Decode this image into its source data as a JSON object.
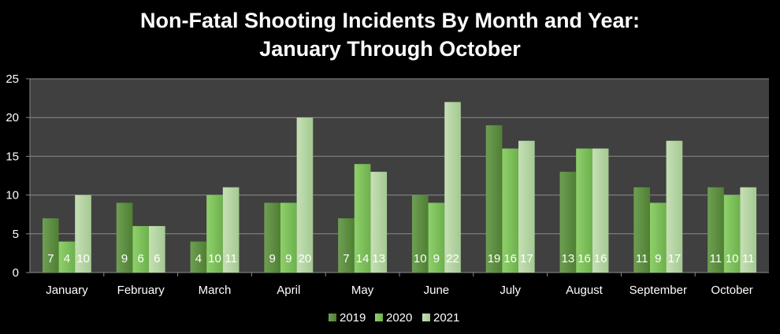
{
  "chart_data": {
    "type": "bar",
    "title": "Non-Fatal Shooting Incidents By Month and Year:",
    "subtitle": "January Through October",
    "xlabel": "",
    "ylabel": "",
    "ylim": [
      0,
      25
    ],
    "yticks": [
      0,
      5,
      10,
      15,
      20,
      25
    ],
    "grid": true,
    "legend_position": "bottom",
    "categories": [
      "January",
      "February",
      "March",
      "April",
      "May",
      "June",
      "July",
      "August",
      "September",
      "October"
    ],
    "series": [
      {
        "name": "2019",
        "color": "#5b8f3d",
        "values": [
          7,
          9,
          4,
          9,
          7,
          10,
          19,
          13,
          11,
          11
        ]
      },
      {
        "name": "2020",
        "color": "#7dc35a",
        "values": [
          4,
          6,
          10,
          9,
          14,
          9,
          16,
          16,
          9,
          10
        ]
      },
      {
        "name": "2021",
        "color": "#b6d6a3",
        "values": [
          10,
          6,
          11,
          20,
          13,
          22,
          17,
          16,
          17,
          11
        ]
      }
    ],
    "plot_background": "#404040",
    "page_background": "#000000"
  }
}
